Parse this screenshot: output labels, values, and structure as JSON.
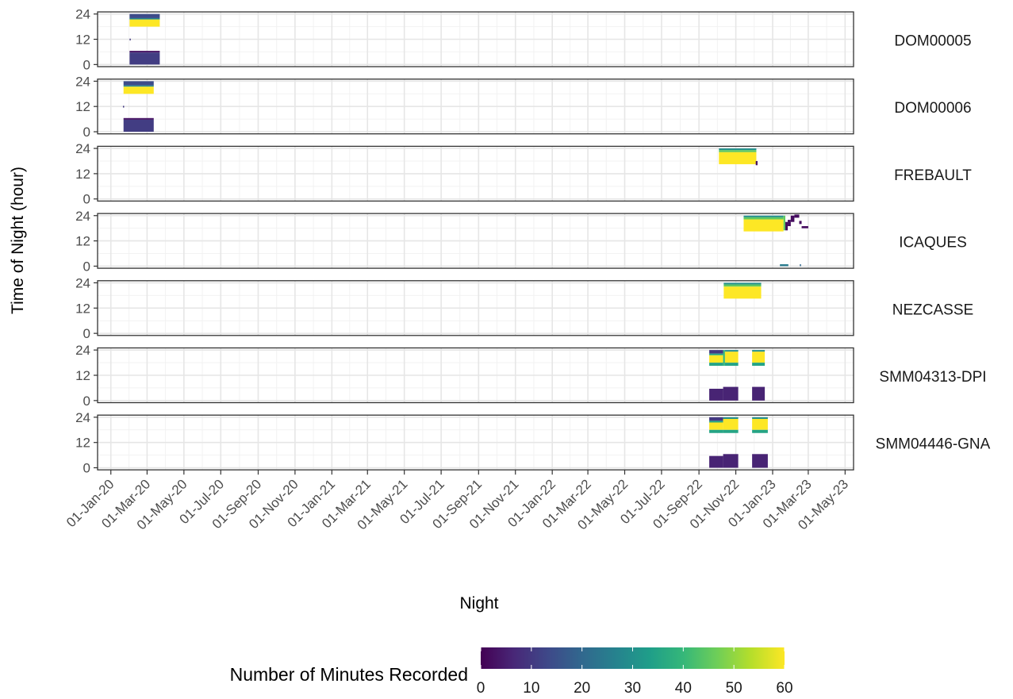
{
  "chart_data": {
    "type": "heatmap",
    "title": "",
    "xlabel": "Night",
    "ylabel": "Time of Night (hour)",
    "x_ticks": [
      "01-Jan-20",
      "01-Mar-20",
      "01-May-20",
      "01-Jul-20",
      "01-Sep-20",
      "01-Nov-20",
      "01-Jan-21",
      "01-Mar-21",
      "01-May-21",
      "01-Jul-21",
      "01-Sep-21",
      "01-Nov-21",
      "01-Jan-22",
      "01-Mar-22",
      "01-May-22",
      "01-Jul-22",
      "01-Sep-22",
      "01-Nov-22",
      "01-Jan-23",
      "01-Mar-23",
      "01-May-23"
    ],
    "xlim": [
      "2019-12-10",
      "2023-05-15"
    ],
    "y_ticks": [
      0,
      12,
      24
    ],
    "ylim": [
      -1,
      25
    ],
    "grid": true,
    "legend": {
      "title": "Number of Minutes Recorded",
      "position": "bottom",
      "ticks": [
        0,
        10,
        20,
        30,
        40,
        50,
        60
      ],
      "range": [
        0,
        60
      ],
      "palette": "viridis",
      "colors": [
        "#440154",
        "#482878",
        "#3e4989",
        "#31688e",
        "#26828e",
        "#1f9e89",
        "#35b779",
        "#6ece58",
        "#b5de2b",
        "#fde725"
      ]
    },
    "panels": [
      {
        "label": "DOM00005",
        "blocks": [
          {
            "start": "2020-02-01",
            "end": "2020-03-22",
            "y0": 22,
            "y1": 24,
            "minutes": 14
          },
          {
            "start": "2020-02-01",
            "end": "2020-03-22",
            "y0": 21.4,
            "y1": 22,
            "minutes": 28
          },
          {
            "start": "2020-02-01",
            "end": "2020-03-22",
            "y0": 18,
            "y1": 21.4,
            "minutes": 60
          },
          {
            "start": "2020-02-01",
            "end": "2020-03-22",
            "y0": 5.7,
            "y1": 6.5,
            "minutes": 3
          },
          {
            "start": "2020-02-01",
            "end": "2020-03-22",
            "y0": 0,
            "y1": 5.7,
            "minutes": 11
          },
          {
            "start": "2020-02-01",
            "end": "2020-02-03",
            "y0": 11.5,
            "y1": 12.3,
            "minutes": 10
          }
        ]
      },
      {
        "label": "DOM00006",
        "blocks": [
          {
            "start": "2020-01-22",
            "end": "2020-03-12",
            "y0": 22,
            "y1": 24,
            "minutes": 14
          },
          {
            "start": "2020-01-22",
            "end": "2020-03-12",
            "y0": 21.4,
            "y1": 22,
            "minutes": 28
          },
          {
            "start": "2020-01-22",
            "end": "2020-03-12",
            "y0": 18,
            "y1": 21.4,
            "minutes": 60
          },
          {
            "start": "2020-01-22",
            "end": "2020-03-12",
            "y0": 5.7,
            "y1": 6.5,
            "minutes": 3
          },
          {
            "start": "2020-01-22",
            "end": "2020-03-12",
            "y0": 0,
            "y1": 5.7,
            "minutes": 11
          },
          {
            "start": "2020-01-21",
            "end": "2020-01-23",
            "y0": 11.5,
            "y1": 12.3,
            "minutes": 10
          }
        ]
      },
      {
        "label": "FREBAULT",
        "blocks": [
          {
            "start": "2022-10-04",
            "end": "2022-12-05",
            "y0": 23.2,
            "y1": 24,
            "minutes": 30
          },
          {
            "start": "2022-10-04",
            "end": "2022-12-05",
            "y0": 22.2,
            "y1": 23.2,
            "minutes": 45
          },
          {
            "start": "2022-10-04",
            "end": "2022-12-05",
            "y0": 16.5,
            "y1": 22.2,
            "minutes": 60
          },
          {
            "start": "2022-12-04",
            "end": "2022-12-07",
            "y0": 16,
            "y1": 18,
            "minutes": 3
          }
        ]
      },
      {
        "label": "ICAQUES",
        "blocks": [
          {
            "start": "2022-11-14",
            "end": "2023-01-19",
            "y0": 23.2,
            "y1": 24,
            "minutes": 30
          },
          {
            "start": "2022-11-14",
            "end": "2023-01-19",
            "y0": 22.2,
            "y1": 23.2,
            "minutes": 45
          },
          {
            "start": "2022-11-14",
            "end": "2023-01-19",
            "y0": 16.5,
            "y1": 22.2,
            "minutes": 60
          },
          {
            "start": "2023-01-19",
            "end": "2023-01-22",
            "y0": 17,
            "y1": 24,
            "minutes": 45
          },
          {
            "start": "2023-01-22",
            "end": "2023-01-26",
            "y0": 17,
            "y1": 21,
            "minutes": 2
          },
          {
            "start": "2023-01-26",
            "end": "2023-01-31",
            "y0": 19,
            "y1": 22,
            "minutes": 2
          },
          {
            "start": "2023-01-31",
            "end": "2023-02-06",
            "y0": 21,
            "y1": 24,
            "minutes": 2
          },
          {
            "start": "2023-02-06",
            "end": "2023-02-14",
            "y0": 23,
            "y1": 24.5,
            "minutes": 2
          },
          {
            "start": "2023-02-14",
            "end": "2023-02-18",
            "y0": 20,
            "y1": 21.5,
            "minutes": 2
          },
          {
            "start": "2023-02-18",
            "end": "2023-03-01",
            "y0": 18,
            "y1": 19,
            "minutes": 2
          },
          {
            "start": "2023-01-13",
            "end": "2023-01-27",
            "y0": 0,
            "y1": 0.9,
            "minutes": 25
          },
          {
            "start": "2023-02-15",
            "end": "2023-02-17",
            "y0": 0,
            "y1": 0.9,
            "minutes": 20
          }
        ]
      },
      {
        "label": "NEZCASSE",
        "blocks": [
          {
            "start": "2022-10-12",
            "end": "2022-12-13",
            "y0": 23.2,
            "y1": 24,
            "minutes": 30
          },
          {
            "start": "2022-10-12",
            "end": "2022-12-13",
            "y0": 22.2,
            "y1": 23.2,
            "minutes": 45
          },
          {
            "start": "2022-10-12",
            "end": "2022-12-13",
            "y0": 16.5,
            "y1": 22.2,
            "minutes": 60
          }
        ]
      },
      {
        "label": "SMM04313-DPI",
        "blocks": [
          {
            "start": "2022-09-18",
            "end": "2022-10-11",
            "y0": 22.3,
            "y1": 24,
            "minutes": 10
          },
          {
            "start": "2022-09-18",
            "end": "2022-10-11",
            "y0": 21.5,
            "y1": 22.3,
            "minutes": 35
          },
          {
            "start": "2022-09-18",
            "end": "2022-10-11",
            "y0": 18,
            "y1": 21.5,
            "minutes": 60
          },
          {
            "start": "2022-09-18",
            "end": "2022-10-11",
            "y0": 16.5,
            "y1": 18,
            "minutes": 35
          },
          {
            "start": "2022-10-11",
            "end": "2022-10-14",
            "y0": 16.5,
            "y1": 24,
            "minutes": 40
          },
          {
            "start": "2022-10-14",
            "end": "2022-11-05",
            "y0": 23.2,
            "y1": 24,
            "minutes": 30
          },
          {
            "start": "2022-10-14",
            "end": "2022-11-05",
            "y0": 18,
            "y1": 23.2,
            "minutes": 60
          },
          {
            "start": "2022-10-14",
            "end": "2022-11-05",
            "y0": 16.5,
            "y1": 18,
            "minutes": 35
          },
          {
            "start": "2022-11-28",
            "end": "2022-12-19",
            "y0": 23.2,
            "y1": 24,
            "minutes": 30
          },
          {
            "start": "2022-11-28",
            "end": "2022-12-19",
            "y0": 18,
            "y1": 23.2,
            "minutes": 60
          },
          {
            "start": "2022-11-28",
            "end": "2022-12-19",
            "y0": 16.5,
            "y1": 18,
            "minutes": 35
          },
          {
            "start": "2022-09-18",
            "end": "2022-10-11",
            "y0": 0,
            "y1": 5.6,
            "minutes": 6
          },
          {
            "start": "2022-10-11",
            "end": "2022-11-05",
            "y0": 0,
            "y1": 6.5,
            "minutes": 6
          },
          {
            "start": "2022-11-28",
            "end": "2022-12-19",
            "y0": 0,
            "y1": 6.5,
            "minutes": 6
          }
        ]
      },
      {
        "label": "SMM04446-GNA",
        "blocks": [
          {
            "start": "2022-09-18",
            "end": "2022-10-11",
            "y0": 22.3,
            "y1": 24,
            "minutes": 10
          },
          {
            "start": "2022-09-18",
            "end": "2022-10-11",
            "y0": 21.5,
            "y1": 22.3,
            "minutes": 35
          },
          {
            "start": "2022-09-18",
            "end": "2022-10-11",
            "y0": 18,
            "y1": 21.5,
            "minutes": 60
          },
          {
            "start": "2022-09-18",
            "end": "2022-10-11",
            "y0": 16.5,
            "y1": 18,
            "minutes": 35
          },
          {
            "start": "2022-10-11",
            "end": "2022-11-05",
            "y0": 23.2,
            "y1": 24,
            "minutes": 30
          },
          {
            "start": "2022-10-11",
            "end": "2022-11-05",
            "y0": 18,
            "y1": 23.2,
            "minutes": 60
          },
          {
            "start": "2022-10-11",
            "end": "2022-11-05",
            "y0": 16.5,
            "y1": 18,
            "minutes": 35
          },
          {
            "start": "2022-11-28",
            "end": "2022-12-24",
            "y0": 23.2,
            "y1": 24,
            "minutes": 30
          },
          {
            "start": "2022-11-28",
            "end": "2022-12-24",
            "y0": 18,
            "y1": 23.2,
            "minutes": 60
          },
          {
            "start": "2022-11-28",
            "end": "2022-12-24",
            "y0": 16.5,
            "y1": 18,
            "minutes": 35
          },
          {
            "start": "2022-09-18",
            "end": "2022-10-11",
            "y0": 0,
            "y1": 5.6,
            "minutes": 6
          },
          {
            "start": "2022-10-11",
            "end": "2022-11-05",
            "y0": 0,
            "y1": 6.5,
            "minutes": 6
          },
          {
            "start": "2022-11-28",
            "end": "2022-12-24",
            "y0": 0,
            "y1": 6.5,
            "minutes": 6
          }
        ]
      }
    ]
  }
}
